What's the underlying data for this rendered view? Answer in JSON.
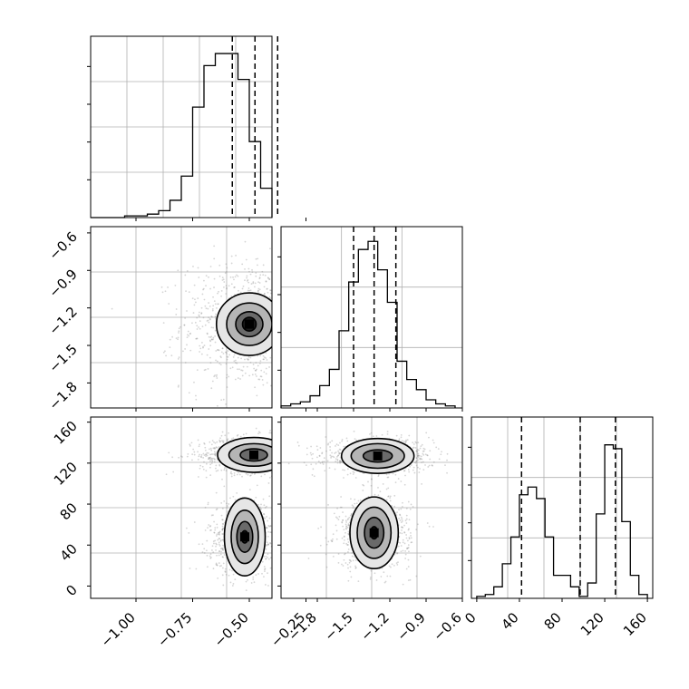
{
  "chart_data": {
    "type": "corner",
    "grid": true,
    "parameters": [
      "",
      "",
      ""
    ],
    "panels": [
      {
        "id": "hist-p1",
        "type": "histogram",
        "xlim": [
          -1.2,
          -0.4
        ],
        "bin_edges": [
          -1.2,
          -1.15,
          -1.1,
          -1.05,
          -1.0,
          -0.95,
          -0.9,
          -0.85,
          -0.8,
          -0.75,
          -0.7,
          -0.65,
          -0.6,
          -0.55,
          -0.5,
          -0.45,
          -0.4,
          -0.35,
          -0.3,
          -0.25,
          -0.2,
          -0.15,
          -0.1
        ],
        "counts": [
          0,
          0,
          0,
          1,
          1,
          2,
          4,
          10,
          24,
          64,
          88,
          95,
          95,
          80,
          44,
          17,
          6,
          2,
          0,
          0,
          0,
          0
        ],
        "ymax": 100,
        "quantiles": [
          -0.575,
          -0.475,
          -0.375
        ],
        "xticks": [
          -1.0,
          -0.75,
          -0.5,
          -0.25
        ],
        "xtick_labels": [
          "−1.00",
          "−0.75",
          "−0.50",
          "−0.25"
        ]
      },
      {
        "id": "hist-p2",
        "type": "histogram",
        "xlim": [
          -2.1,
          -0.6
        ],
        "bin_edges": [
          -2.1,
          -2.02,
          -1.94,
          -1.86,
          -1.78,
          -1.7,
          -1.62,
          -1.54,
          -1.46,
          -1.38,
          -1.3,
          -1.22,
          -1.14,
          -1.06,
          -0.98,
          -0.9,
          -0.82,
          -0.74,
          -0.66
        ],
        "counts": [
          1,
          2,
          3,
          6,
          11,
          19,
          38,
          62,
          78,
          82,
          68,
          52,
          23,
          14,
          9,
          4,
          2,
          1
        ],
        "ymax": 85,
        "quantiles": [
          -1.5,
          -1.33,
          -1.15
        ],
        "xticks": [
          -1.8,
          -1.5,
          -1.2,
          -0.9,
          -0.6
        ],
        "xtick_labels": [
          "−1.8",
          "−1.5",
          "−1.2",
          "−0.9",
          "−0.6"
        ]
      },
      {
        "id": "hist-p3",
        "type": "histogram",
        "xlim": [
          -5,
          165
        ],
        "bin_edges": [
          0,
          8,
          16,
          24,
          32,
          40,
          48,
          56,
          64,
          72,
          80,
          88,
          96,
          104,
          112,
          120,
          128,
          136,
          144,
          152,
          160
        ],
        "counts": [
          0.5,
          1,
          3,
          9,
          16,
          27,
          29,
          26,
          16,
          6,
          6,
          3,
          0.5,
          4,
          22,
          40,
          39,
          20,
          6,
          1
        ],
        "ymax": 45,
        "quantiles": [
          42,
          97,
          130
        ],
        "xticks": [
          0,
          40,
          80,
          120,
          160
        ],
        "xtick_labels": [
          "0",
          "40",
          "80",
          "120",
          "160"
        ]
      },
      {
        "id": "joint-p1-p2",
        "type": "scatter-density",
        "xlim": [
          -1.2,
          -0.4
        ],
        "ylim": [
          -2.0,
          -0.55
        ],
        "clusters": [
          {
            "center": [
              -0.5,
              -1.33
            ],
            "spread": [
              0.15,
              0.26
            ],
            "levels": [
              [
                0.145,
                0.25
              ],
              [
                0.1,
                0.17
              ],
              [
                0.06,
                0.1
              ],
              [
                0.03,
                0.055
              ]
            ]
          }
        ],
        "yticks": [
          -0.6,
          -0.9,
          -1.2,
          -1.5,
          -1.8
        ],
        "ytick_labels": [
          "−0.6",
          "−0.9",
          "−1.2",
          "−1.5",
          "−1.8"
        ]
      },
      {
        "id": "joint-p1-p3",
        "type": "scatter-density",
        "xlim": [
          -1.2,
          -0.4
        ],
        "ylim": [
          -12,
          165
        ],
        "clusters": [
          {
            "center": [
              -0.48,
              128
            ],
            "spread": [
              0.12,
              9
            ],
            "levels": [
              [
                0.16,
                17
              ],
              [
                0.11,
                11
              ],
              [
                0.06,
                6
              ]
            ]
          },
          {
            "center": [
              -0.52,
              48
            ],
            "spread": [
              0.08,
              18
            ],
            "levels": [
              [
                0.09,
                38
              ],
              [
                0.06,
                26
              ],
              [
                0.035,
                15
              ],
              [
                0.015,
                6
              ]
            ]
          }
        ],
        "yticks": [
          0,
          40,
          80,
          120,
          160
        ],
        "ytick_labels": [
          "0",
          "40",
          "80",
          "120",
          "160"
        ]
      },
      {
        "id": "joint-p2-p3",
        "type": "scatter-density",
        "xlim": [
          -2.1,
          -0.6
        ],
        "ylim": [
          -12,
          165
        ],
        "clusters": [
          {
            "center": [
              -1.3,
              127
            ],
            "spread": [
              0.22,
              8
            ],
            "levels": [
              [
                0.3,
                17
              ],
              [
                0.22,
                12
              ],
              [
                0.12,
                6
              ]
            ]
          },
          {
            "center": [
              -1.33,
              52
            ],
            "spread": [
              0.15,
              17
            ],
            "levels": [
              [
                0.2,
                35
              ],
              [
                0.14,
                25
              ],
              [
                0.08,
                15
              ],
              [
                0.03,
                6
              ]
            ]
          }
        ]
      }
    ]
  }
}
